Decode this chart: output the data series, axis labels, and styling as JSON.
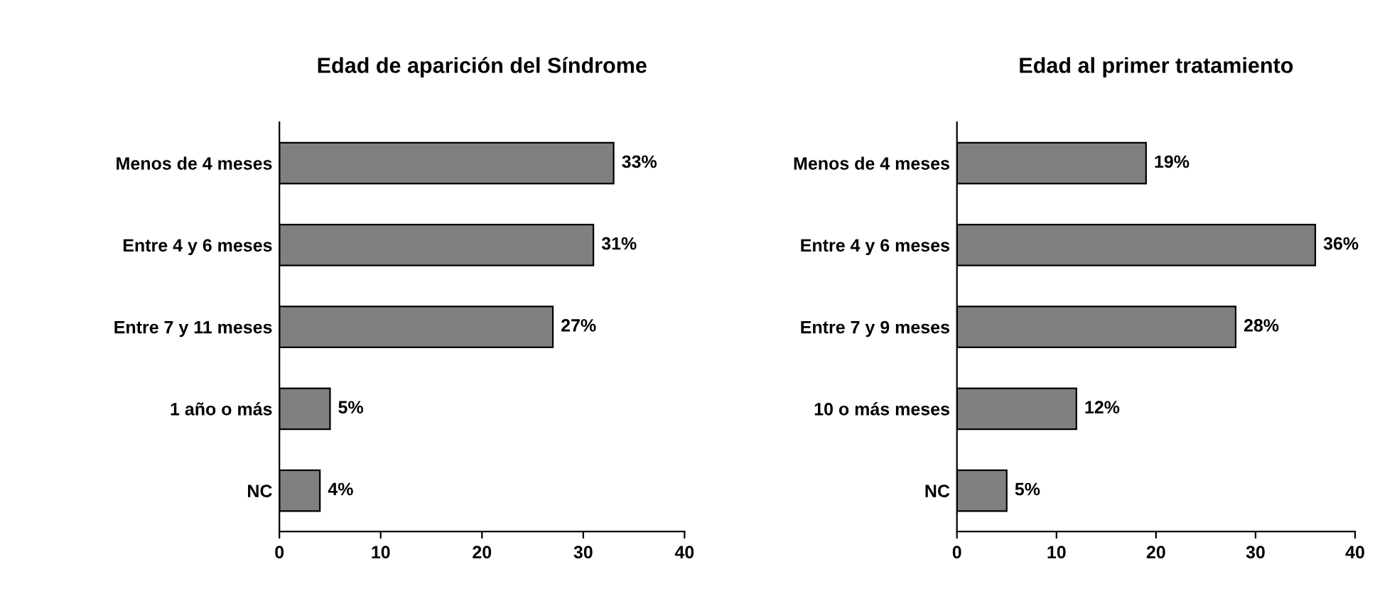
{
  "chart_data": [
    {
      "type": "bar",
      "orientation": "horizontal",
      "title": "Edad de aparición del Síndrome",
      "categories": [
        "Menos de 4 meses",
        "Entre 4 y 6 meses",
        "Entre 7 y 11 meses",
        "1 año o más",
        "NC"
      ],
      "values": [
        33,
        31,
        27,
        5,
        4
      ],
      "value_labels": [
        "33%",
        "31%",
        "27%",
        "5%",
        "4%"
      ],
      "color": "#808080",
      "xlim": [
        0,
        40
      ],
      "xticks": [
        0,
        10,
        20,
        30,
        40
      ],
      "grid": false,
      "legend": false
    },
    {
      "type": "bar",
      "orientation": "horizontal",
      "title": "Edad al primer tratamiento",
      "categories": [
        "Menos de 4 meses",
        "Entre 4 y 6 meses",
        "Entre 7 y 9 meses",
        "10 o más meses",
        "NC"
      ],
      "values": [
        19,
        36,
        28,
        12,
        5
      ],
      "value_labels": [
        "19%",
        "36%",
        "28%",
        "12%",
        "5%"
      ],
      "color": "#808080",
      "xlim": [
        0,
        40
      ],
      "xticks": [
        0,
        10,
        20,
        30,
        40
      ],
      "grid": false,
      "legend": false
    }
  ]
}
